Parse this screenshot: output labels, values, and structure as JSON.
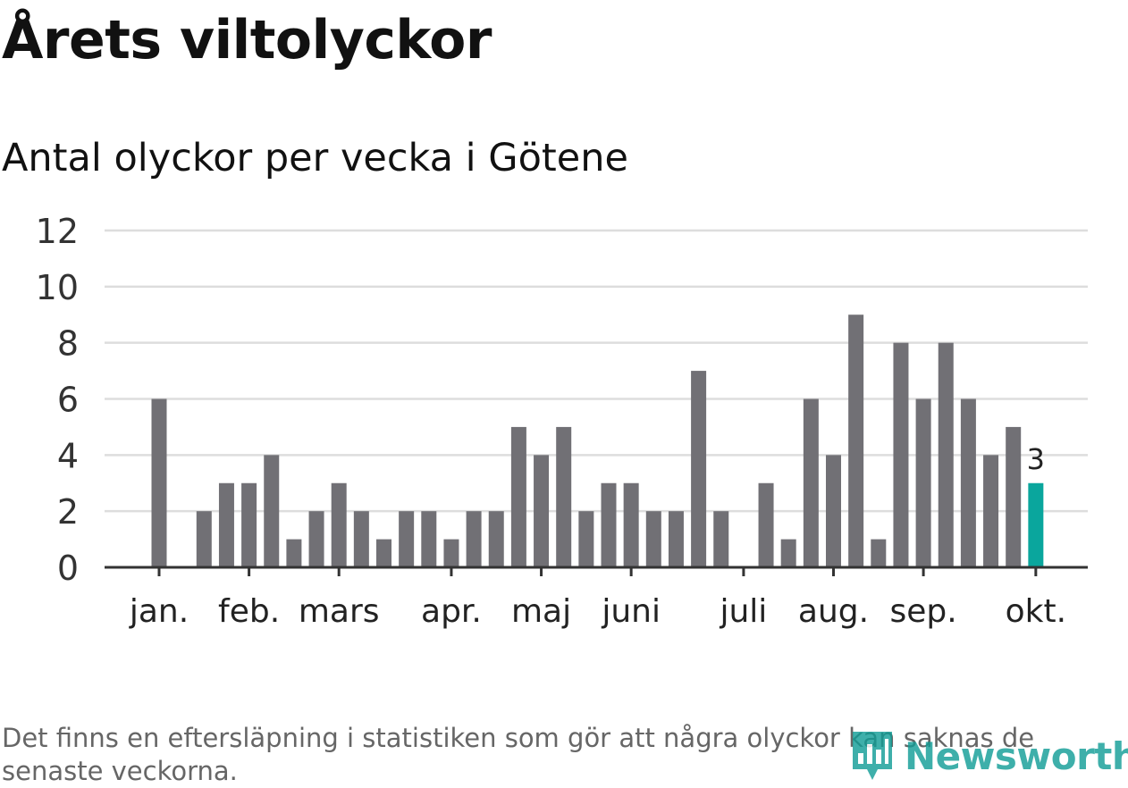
{
  "title": "Årets viltolyckor",
  "subtitle": "Antal olyckor per vecka i Götene",
  "footnote": "Det finns en eftersläpning i statistiken som gör att några olyckor kan saknas de senaste veckorna.",
  "brand": {
    "name": "Newsworthy"
  },
  "colors": {
    "bar": "#717075",
    "highlight": "#0aa69d",
    "grid": "#dddddd",
    "axis": "#333333"
  },
  "chart_data": {
    "type": "bar",
    "title": "Årets viltolyckor",
    "subtitle": "Antal olyckor per vecka i Götene",
    "xlabel": "",
    "ylabel": "",
    "ylim": [
      0,
      12
    ],
    "yticks": [
      "0",
      "2",
      "4",
      "6",
      "8",
      "10",
      "12"
    ],
    "weeks": [
      1,
      2,
      3,
      4,
      5,
      6,
      7,
      8,
      9,
      10,
      11,
      12,
      13,
      14,
      15,
      16,
      17,
      18,
      19,
      20,
      21,
      22,
      23,
      24,
      25,
      26,
      27,
      28,
      29,
      30,
      31,
      32,
      33,
      34,
      35,
      36,
      37,
      38,
      39,
      40
    ],
    "values": [
      6,
      0,
      2,
      3,
      3,
      4,
      1,
      2,
      3,
      2,
      1,
      2,
      2,
      1,
      2,
      2,
      5,
      4,
      5,
      2,
      3,
      3,
      2,
      2,
      7,
      2,
      0,
      3,
      1,
      6,
      4,
      9,
      1,
      8,
      6,
      8,
      6,
      4,
      5,
      3
    ],
    "month_labels": [
      {
        "label": "jan.",
        "week": 1
      },
      {
        "label": "feb.",
        "week": 5
      },
      {
        "label": "mars",
        "week": 9
      },
      {
        "label": "apr.",
        "week": 14
      },
      {
        "label": "maj",
        "week": 18
      },
      {
        "label": "juni",
        "week": 22
      },
      {
        "label": "juli",
        "week": 27
      },
      {
        "label": "aug.",
        "week": 31
      },
      {
        "label": "sep.",
        "week": 35
      },
      {
        "label": "okt.",
        "week": 40
      }
    ],
    "highlight_last": true,
    "last_value_label": "3",
    "grid": true
  }
}
